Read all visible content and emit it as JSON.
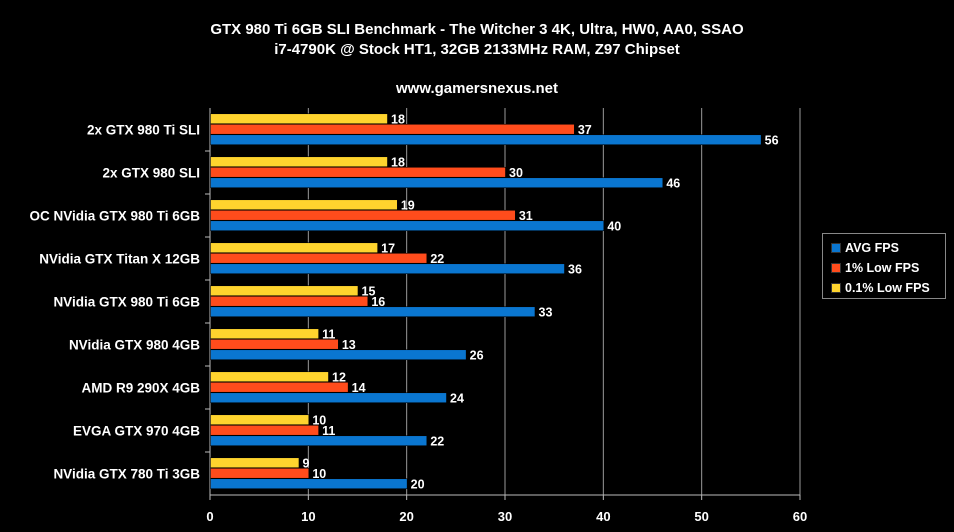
{
  "chart_data": {
    "type": "bar",
    "orientation": "horizontal",
    "title": "GTX 980 Ti 6GB SLI Benchmark - The Witcher 3 4K, Ultra, HW0, AA0, SSAO",
    "subtitle": "i7-4790K @ Stock HT1, 32GB 2133MHz RAM, Z97 Chipset",
    "source": "www.gamersnexus.net",
    "categories": [
      "2x GTX 980 Ti SLI",
      "2x GTX 980 SLI",
      "OC NVidia GTX 980 Ti 6GB",
      "NVidia GTX Titan X 12GB",
      "NVidia GTX 980 Ti 6GB",
      "NVidia GTX 980 4GB",
      "AMD R9 290X 4GB",
      "EVGA GTX 970 4GB",
      "NVidia GTX 780 Ti 3GB"
    ],
    "series": [
      {
        "name": "AVG FPS",
        "color": "#0a76d0",
        "values": [
          56,
          46,
          40,
          36,
          33,
          26,
          24,
          22,
          20
        ]
      },
      {
        "name": "1% Low FPS",
        "color": "#ff4c1c",
        "values": [
          37,
          30,
          31,
          22,
          16,
          13,
          14,
          11,
          10
        ]
      },
      {
        "name": "0.1% Low FPS",
        "color": "#ffd42e",
        "values": [
          18,
          18,
          19,
          17,
          15,
          11,
          12,
          10,
          9
        ]
      }
    ],
    "xlim": [
      0,
      60
    ],
    "xticks": [
      "0",
      "10",
      "20",
      "30",
      "40",
      "50",
      "60"
    ],
    "grid": true,
    "legend_position": "right"
  }
}
